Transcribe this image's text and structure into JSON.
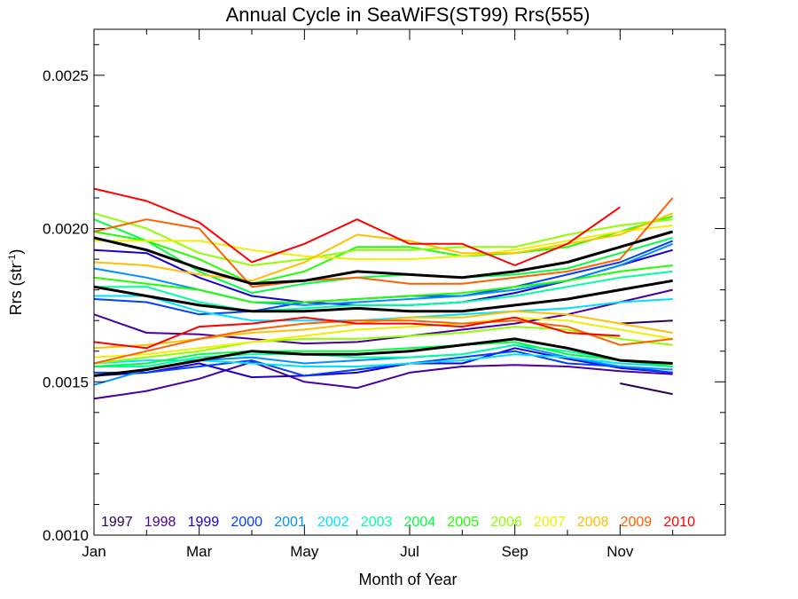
{
  "chart_data": {
    "type": "line",
    "title": "Annual Cycle in SeaWiFS(ST99) Rrs(555)",
    "xlabel": "Month of Year",
    "ylabel": "Rrs (str",
    "ylabel_sup": "-1",
    "ylabel_close": ")",
    "xlim": [
      1,
      13
    ],
    "ylim": [
      0.001,
      0.00265
    ],
    "x_ticks": [
      {
        "value": 1,
        "label": "Jan"
      },
      {
        "value": 3,
        "label": "Mar"
      },
      {
        "value": 5,
        "label": "May"
      },
      {
        "value": 7,
        "label": "Jul"
      },
      {
        "value": 9,
        "label": "Sep"
      },
      {
        "value": 11,
        "label": "Nov"
      }
    ],
    "y_ticks": [
      {
        "value": 0.001,
        "label": "0.0010"
      },
      {
        "value": 0.0015,
        "label": "0.0015"
      },
      {
        "value": 0.002,
        "label": "0.0020"
      },
      {
        "value": 0.0025,
        "label": "0.0025"
      }
    ],
    "y_minor_ticks": [
      0.0011,
      0.0012,
      0.0013,
      0.0014,
      0.0016,
      0.0017,
      0.0018,
      0.0019,
      0.0021,
      0.0022,
      0.0023,
      0.0024,
      0.0026
    ],
    "x_minor_ticks": [
      2,
      4,
      6,
      8,
      10,
      12
    ],
    "legend_position": "bottom",
    "x": [
      1,
      2,
      3,
      4,
      5,
      6,
      7,
      8,
      9,
      10,
      11,
      12
    ],
    "series": [
      {
        "name": "1997",
        "color": "#2b0057",
        "lines": [
          {
            "x": [
              11,
              12
            ],
            "y": [
              0.00169,
              0.0017
            ]
          },
          {
            "x": [
              11,
              12
            ],
            "y": [
              0.001495,
              0.00146
            ]
          }
        ]
      },
      {
        "name": "1998",
        "color": "#4a00a0",
        "lines": [
          {
            "x": [
              1,
              2,
              3,
              4,
              5,
              6,
              7,
              8,
              9,
              10,
              11,
              12
            ],
            "y": [
              0.00172,
              0.00166,
              0.001655,
              0.00164,
              0.001625,
              0.00163,
              0.00165,
              0.00167,
              0.00169,
              0.00172,
              0.00176,
              0.0018
            ]
          },
          {
            "x": [
              1,
              2,
              3,
              4,
              5,
              6,
              7,
              8,
              9,
              10,
              11,
              12
            ],
            "y": [
              0.001445,
              0.00147,
              0.00151,
              0.001565,
              0.0015,
              0.00148,
              0.00153,
              0.00155,
              0.001555,
              0.00155,
              0.001535,
              0.001525
            ]
          }
        ]
      },
      {
        "name": "1999",
        "color": "#1800d0",
        "lines": [
          {
            "x": [
              1,
              2,
              3,
              4,
              5,
              6,
              7,
              8,
              9,
              10,
              11,
              12
            ],
            "y": [
              0.00193,
              0.00192,
              0.00184,
              0.00178,
              0.00176,
              0.00175,
              0.00175,
              0.00176,
              0.00179,
              0.00183,
              0.00188,
              0.00193
            ]
          },
          {
            "x": [
              1,
              2,
              3,
              4,
              5,
              6,
              7,
              8,
              9,
              10,
              11,
              12
            ],
            "y": [
              0.00152,
              0.00153,
              0.00156,
              0.001515,
              0.00152,
              0.00153,
              0.00156,
              0.00156,
              0.00161,
              0.001575,
              0.001545,
              0.00153
            ]
          }
        ]
      },
      {
        "name": "2000",
        "color": "#0040ff",
        "lines": [
          {
            "x": [
              1,
              2,
              3,
              4,
              5,
              6,
              7,
              8,
              9,
              10,
              11,
              12
            ],
            "y": [
              0.00177,
              0.00176,
              0.00172,
              0.00173,
              0.00176,
              0.00177,
              0.00178,
              0.00178,
              0.00181,
              0.00185,
              0.00189,
              0.00196
            ]
          },
          {
            "x": [
              1,
              2,
              3,
              4,
              5,
              6,
              7,
              8,
              9,
              10,
              11,
              12
            ],
            "y": [
              0.00153,
              0.00153,
              0.00155,
              0.00157,
              0.00152,
              0.00154,
              0.00156,
              0.00158,
              0.0016,
              0.00156,
              0.00155,
              0.00153
            ]
          }
        ]
      },
      {
        "name": "2001",
        "color": "#0090ff",
        "lines": [
          {
            "x": [
              1,
              2,
              3,
              4,
              5,
              6,
              7,
              8,
              9,
              10,
              11,
              12
            ],
            "y": [
              0.00187,
              0.00184,
              0.0018,
              0.00176,
              0.00175,
              0.00176,
              0.00177,
              0.00178,
              0.0018,
              0.00183,
              0.00188,
              0.00195
            ]
          },
          {
            "x": [
              1,
              2,
              3,
              4,
              5,
              6,
              7,
              8,
              9,
              10,
              11,
              12
            ],
            "y": [
              0.00149,
              0.00154,
              0.00157,
              0.00158,
              0.00156,
              0.00157,
              0.00158,
              0.00159,
              0.00162,
              0.00158,
              0.00155,
              0.00154
            ]
          }
        ]
      },
      {
        "name": "2002",
        "color": "#00e0ff",
        "lines": [
          {
            "x": [
              1,
              2,
              3,
              4,
              5,
              6,
              7,
              8,
              9,
              10,
              11,
              12
            ],
            "y": [
              0.00178,
              0.00178,
              0.00173,
              0.0017,
              0.0017,
              0.0017,
              0.00171,
              0.00172,
              0.00173,
              0.00174,
              0.00176,
              0.00177
            ]
          },
          {
            "x": [
              1,
              2,
              3,
              4,
              5,
              6,
              7,
              8,
              9,
              10,
              11,
              12
            ],
            "y": [
              0.00156,
              0.00157,
              0.00157,
              0.00156,
              0.00155,
              0.00155,
              0.00156,
              0.00157,
              0.00159,
              0.00158,
              0.00156,
              0.00155
            ]
          }
        ]
      },
      {
        "name": "2003",
        "color": "#00ffa0",
        "lines": [
          {
            "x": [
              1,
              2,
              3,
              4,
              5,
              6,
              7,
              8,
              9,
              10,
              11,
              12
            ],
            "y": [
              0.00181,
              0.00181,
              0.00176,
              0.00173,
              0.00174,
              0.00175,
              0.00175,
              0.00176,
              0.00178,
              0.00181,
              0.00184,
              0.00186
            ]
          },
          {
            "x": [
              1,
              2,
              3,
              4,
              5,
              6,
              7,
              8,
              9,
              10,
              11,
              12
            ],
            "y": [
              0.00155,
              0.00155,
              0.00158,
              0.00159,
              0.00159,
              0.00158,
              0.00158,
              0.00159,
              0.00162,
              0.0016,
              0.00157,
              0.00155
            ]
          }
        ]
      },
      {
        "name": "2004",
        "color": "#00ff40",
        "lines": [
          {
            "x": [
              1,
              2,
              3,
              4,
              5,
              6,
              7,
              8,
              9,
              10,
              11,
              12
            ],
            "y": [
              0.00203,
              0.00196,
              0.00186,
              0.00179,
              0.00182,
              0.00184,
              0.00185,
              0.00184,
              0.00185,
              0.00187,
              0.00192,
              0.00197
            ]
          },
          {
            "x": [
              1,
              2,
              3,
              4,
              5,
              6,
              7,
              8,
              9,
              10,
              11,
              12
            ],
            "y": [
              0.00155,
              0.00156,
              0.00159,
              0.0016,
              0.0016,
              0.0016,
              0.00161,
              0.00162,
              0.00163,
              0.00159,
              0.00157,
              0.00155
            ]
          }
        ]
      },
      {
        "name": "2005",
        "color": "#20ff00",
        "lines": [
          {
            "x": [
              1,
              2,
              3,
              4,
              5,
              6,
              7,
              8,
              9,
              10,
              11,
              12
            ],
            "y": [
              0.00199,
              0.00196,
              0.0019,
              0.00182,
              0.00186,
              0.00194,
              0.00194,
              0.00191,
              0.00192,
              0.00194,
              0.00199,
              0.00204
            ]
          },
          {
            "x": [
              1,
              2,
              3,
              4,
              5,
              6,
              7,
              8,
              9,
              10,
              11,
              12
            ],
            "y": [
              0.00184,
              0.00182,
              0.0018,
              0.00176,
              0.00176,
              0.00177,
              0.00178,
              0.00179,
              0.00181,
              0.00183,
              0.00186,
              0.00188
            ]
          }
        ]
      },
      {
        "name": "2006",
        "color": "#90ff00",
        "lines": [
          {
            "x": [
              1,
              2,
              3,
              4,
              5,
              6,
              7,
              8,
              9,
              10,
              11,
              12
            ],
            "y": [
              0.00205,
              0.002,
              0.00192,
              0.00188,
              0.0019,
              0.00193,
              0.00193,
              0.00194,
              0.00194,
              0.00198,
              0.00201,
              0.00203
            ]
          },
          {
            "x": [
              1,
              2,
              3,
              4,
              5,
              6,
              7,
              8,
              9,
              10,
              11,
              12
            ],
            "y": [
              0.00156,
              0.00158,
              0.0016,
              0.00163,
              0.00164,
              0.00164,
              0.00165,
              0.00166,
              0.00168,
              0.00167,
              0.00164,
              0.00162
            ]
          }
        ]
      },
      {
        "name": "2007",
        "color": "#f0f000",
        "lines": [
          {
            "x": [
              1,
              2,
              3,
              4,
              5,
              6,
              7,
              8,
              9,
              10,
              11,
              12
            ],
            "y": [
              0.00196,
              0.00196,
              0.00196,
              0.00193,
              0.00191,
              0.0019,
              0.0019,
              0.00191,
              0.00193,
              0.00196,
              0.00199,
              0.00201
            ]
          },
          {
            "x": [
              1,
              2,
              3,
              4,
              5,
              6,
              7,
              8,
              9,
              10,
              11,
              12
            ],
            "y": [
              0.00158,
              0.00159,
              0.00161,
              0.00163,
              0.00165,
              0.00167,
              0.00168,
              0.00169,
              0.00171,
              0.0017,
              0.00167,
              0.00164
            ]
          }
        ]
      },
      {
        "name": "2008",
        "color": "#ffc000",
        "lines": [
          {
            "x": [
              1,
              2,
              3,
              4,
              5,
              6,
              7,
              8,
              9,
              10,
              11,
              12
            ],
            "y": [
              0.00189,
              0.00188,
              0.00185,
              0.00183,
              0.00189,
              0.00198,
              0.00196,
              0.00192,
              0.00192,
              0.00195,
              0.00198,
              0.00205
            ]
          },
          {
            "x": [
              1,
              2,
              3,
              4,
              5,
              6,
              7,
              8,
              9,
              10,
              11,
              12
            ],
            "y": [
              0.00161,
              0.00162,
              0.00164,
              0.00166,
              0.00167,
              0.00169,
              0.00171,
              0.00171,
              0.00173,
              0.00172,
              0.00169,
              0.00166
            ]
          }
        ]
      },
      {
        "name": "2009",
        "color": "#ff6000",
        "lines": [
          {
            "x": [
              1,
              2,
              3,
              4,
              5,
              6,
              7,
              8,
              9,
              10,
              11,
              12
            ],
            "y": [
              0.00199,
              0.00203,
              0.002,
              0.00181,
              0.00183,
              0.00184,
              0.00182,
              0.00182,
              0.00184,
              0.00186,
              0.0019,
              0.0021
            ]
          },
          {
            "x": [
              1,
              2,
              3,
              4,
              5,
              6,
              7,
              8,
              9,
              10,
              11,
              12
            ],
            "y": [
              0.00156,
              0.0016,
              0.00164,
              0.00167,
              0.00169,
              0.0017,
              0.0017,
              0.00169,
              0.0017,
              0.00168,
              0.00162,
              0.00164
            ]
          }
        ]
      },
      {
        "name": "2010",
        "color": "#ff0000",
        "lines": [
          {
            "x": [
              1,
              2,
              3,
              4,
              5,
              6,
              7,
              8,
              9,
              10,
              11
            ],
            "y": [
              0.00213,
              0.00209,
              0.00202,
              0.00189,
              0.00195,
              0.00203,
              0.00195,
              0.00195,
              0.00188,
              0.00195,
              0.00207
            ]
          },
          {
            "x": [
              1,
              2,
              3,
              4,
              5,
              6,
              7,
              8,
              9,
              10,
              11
            ],
            "y": [
              0.00163,
              0.00161,
              0.00168,
              0.00169,
              0.00171,
              0.00169,
              0.00169,
              0.00168,
              0.00171,
              0.00166,
              0.00165
            ]
          }
        ]
      },
      {
        "color": "#000000",
        "width": 3,
        "lines": [
          {
            "x": [
              1,
              2,
              3,
              4,
              5,
              6,
              7,
              8,
              9,
              10,
              11,
              12
            ],
            "y": [
              0.00197,
              0.00193,
              0.00187,
              0.00182,
              0.00183,
              0.00186,
              0.00185,
              0.00184,
              0.00186,
              0.00189,
              0.00194,
              0.00199
            ]
          },
          {
            "x": [
              1,
              2,
              3,
              4,
              5,
              6,
              7,
              8,
              9,
              10,
              11,
              12
            ],
            "y": [
              0.00181,
              0.00178,
              0.00175,
              0.00173,
              0.00173,
              0.00174,
              0.00173,
              0.00173,
              0.00175,
              0.00177,
              0.0018,
              0.00183
            ]
          },
          {
            "x": [
              1,
              2,
              3,
              4,
              5,
              6,
              7,
              8,
              9,
              10,
              11,
              12
            ],
            "y": [
              0.00152,
              0.00154,
              0.00157,
              0.0016,
              0.00159,
              0.00159,
              0.0016,
              0.00162,
              0.00164,
              0.00161,
              0.00157,
              0.00156
            ]
          }
        ]
      }
    ]
  }
}
